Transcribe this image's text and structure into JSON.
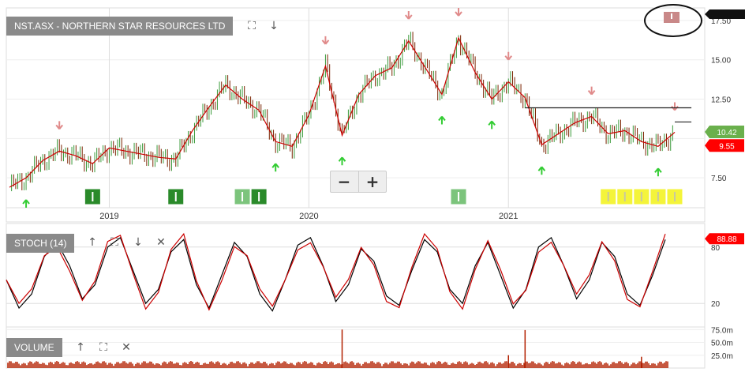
{
  "header": {
    "title": "NST.ASX - NORTHERN STAR RESOURCES LTD",
    "tools": [
      "expand-icon",
      "arrow-down-icon"
    ]
  },
  "zoom": {
    "minus": "−",
    "plus": "+"
  },
  "colors": {
    "price": "#cc0000",
    "upbar": "#3a9a3a",
    "downbar": "#7a2200",
    "stoch": "#000000",
    "volume": "#b22000",
    "arrow_up": "#33cc33",
    "arrow_down": "#e08a8a",
    "label_bg": "#8a8a8a",
    "last_price_bg": "#6ab04c",
    "ma_bg": "#ff0000"
  },
  "chart_data": [
    {
      "type": "line",
      "title": "NST.ASX - NORTHERN STAR RESOURCES LTD",
      "xlabel": "",
      "ylabel": "",
      "x_ticks": [
        "2019",
        "2020",
        "2021"
      ],
      "xlim": [
        "2018-07",
        "2021-11"
      ],
      "y_ticks": [
        7.5,
        10.0,
        12.5,
        15.0,
        17.5
      ],
      "y_tick_labels": [
        "7.50",
        "",
        "12.50",
        "15.00",
        "17.50"
      ],
      "ylim": [
        5.6,
        18.3
      ],
      "grid": true,
      "series": [
        {
          "name": "",
          "style": "ohlc+line",
          "points": [
            [
              "2018-07",
              6.9
            ],
            [
              "2018-08",
              7.5
            ],
            [
              "2018-09",
              8.6
            ],
            [
              "2018-10",
              9.2
            ],
            [
              "2018-11",
              8.9
            ],
            [
              "2018-12",
              8.4
            ],
            [
              "2019-01",
              9.4
            ],
            [
              "2019-02",
              9.2
            ],
            [
              "2019-03",
              9.0
            ],
            [
              "2019-04",
              8.8
            ],
            [
              "2019-05",
              8.7
            ],
            [
              "2019-06",
              10.5
            ],
            [
              "2019-07",
              12.0
            ],
            [
              "2019-08",
              13.4
            ],
            [
              "2019-09",
              12.5
            ],
            [
              "2019-10",
              11.8
            ],
            [
              "2019-11",
              9.8
            ],
            [
              "2019-12",
              9.5
            ],
            [
              "2020-01",
              11.5
            ],
            [
              "2020-02",
              14.6
            ],
            [
              "2020-03",
              10.2
            ],
            [
              "2020-04",
              12.8
            ],
            [
              "2020-05",
              14.0
            ],
            [
              "2020-06",
              14.5
            ],
            [
              "2020-07",
              16.2
            ],
            [
              "2020-08",
              14.5
            ],
            [
              "2020-09",
              12.8
            ],
            [
              "2020-10",
              16.4
            ],
            [
              "2020-11",
              14.2
            ],
            [
              "2020-12",
              12.5
            ],
            [
              "2021-01",
              13.6
            ],
            [
              "2021-02",
              12.6
            ],
            [
              "2021-03",
              9.6
            ],
            [
              "2021-04",
              10.3
            ],
            [
              "2021-05",
              11.0
            ],
            [
              "2021-06",
              11.4
            ],
            [
              "2021-07",
              10.3
            ],
            [
              "2021-08",
              10.5
            ],
            [
              "2021-09",
              9.8
            ],
            [
              "2021-10",
              9.5
            ],
            [
              "2021-11",
              10.4
            ]
          ]
        }
      ],
      "signals_up": [
        "2018-08",
        "2019-11",
        "2020-03",
        "2020-09",
        "2020-12",
        "2021-03",
        "2021-10"
      ],
      "signals_down": [
        "2018-10",
        "2020-02",
        "2020-07",
        "2020-10",
        "2021-01",
        "2021-06",
        "2021-11"
      ],
      "lines": [
        {
          "from": "2021-02",
          "to": "2021-12",
          "y": 11.95
        },
        {
          "from": "2021-11",
          "to": "2021-12",
          "y": 11.05
        }
      ],
      "markers": [
        {
          "x": "2018-12",
          "kind": "green"
        },
        {
          "x": "2019-05",
          "kind": "green"
        },
        {
          "x": "2019-09",
          "kind": "green-light"
        },
        {
          "x": "2019-10",
          "kind": "green"
        },
        {
          "x": "2020-10",
          "kind": "green-light"
        },
        {
          "x": "2021-07",
          "kind": "yellow"
        },
        {
          "x": "2021-08",
          "kind": "yellow"
        },
        {
          "x": "2021-09",
          "kind": "yellow"
        },
        {
          "x": "2021-10",
          "kind": "yellow"
        },
        {
          "x": "2021-11",
          "kind": "yellow"
        }
      ],
      "price_labels": [
        {
          "text": "10.42",
          "value": 10.42,
          "kind": "last"
        },
        {
          "text": "9.55",
          "value": 9.55,
          "kind": "ma"
        }
      ],
      "top_label": {
        "text": "17.50"
      }
    },
    {
      "type": "line",
      "title": "STOCH (14)",
      "xlabel": "",
      "ylabel": "",
      "y_ticks": [
        20,
        80
      ],
      "ylim": [
        0,
        100
      ],
      "price_labels": [
        {
          "text": "88.88",
          "value": 88.88,
          "kind": "ma"
        }
      ],
      "series": [
        {
          "name": "",
          "values": [
            45,
            15,
            30,
            70,
            85,
            60,
            25,
            40,
            80,
            90,
            55,
            20,
            35,
            75,
            88,
            40,
            15,
            50,
            85,
            70,
            30,
            12,
            45,
            82,
            90,
            60,
            22,
            40,
            78,
            65,
            28,
            18,
            55,
            88,
            75,
            35,
            20,
            60,
            85,
            50,
            15,
            35,
            80,
            90,
            60,
            25,
            45,
            85,
            70,
            30,
            18,
            50,
            88
          ]
        }
      ]
    },
    {
      "type": "bar",
      "title": "VOLUME",
      "xlabel": "",
      "ylabel": "",
      "y_ticks": [
        25,
        50,
        75
      ],
      "y_tick_labels": [
        "25.0m",
        "50.0m",
        "75.0m"
      ],
      "ylim": [
        0,
        80
      ],
      "spikes": [
        {
          "x": "2020-03",
          "value": 75
        },
        {
          "x": "2021-01",
          "value": 25
        },
        {
          "x": "2021-02",
          "value": 74
        },
        {
          "x": "2021-09",
          "value": 22
        }
      ]
    }
  ],
  "stoch_label": "STOCH (14)",
  "stoch_tools": [
    "arrow-up-icon",
    "expand-icon",
    "arrow-down-icon",
    "close-icon"
  ],
  "volume_label": "VOLUME",
  "volume_tools": [
    "arrow-up-icon",
    "expand-icon",
    "close-icon"
  ]
}
